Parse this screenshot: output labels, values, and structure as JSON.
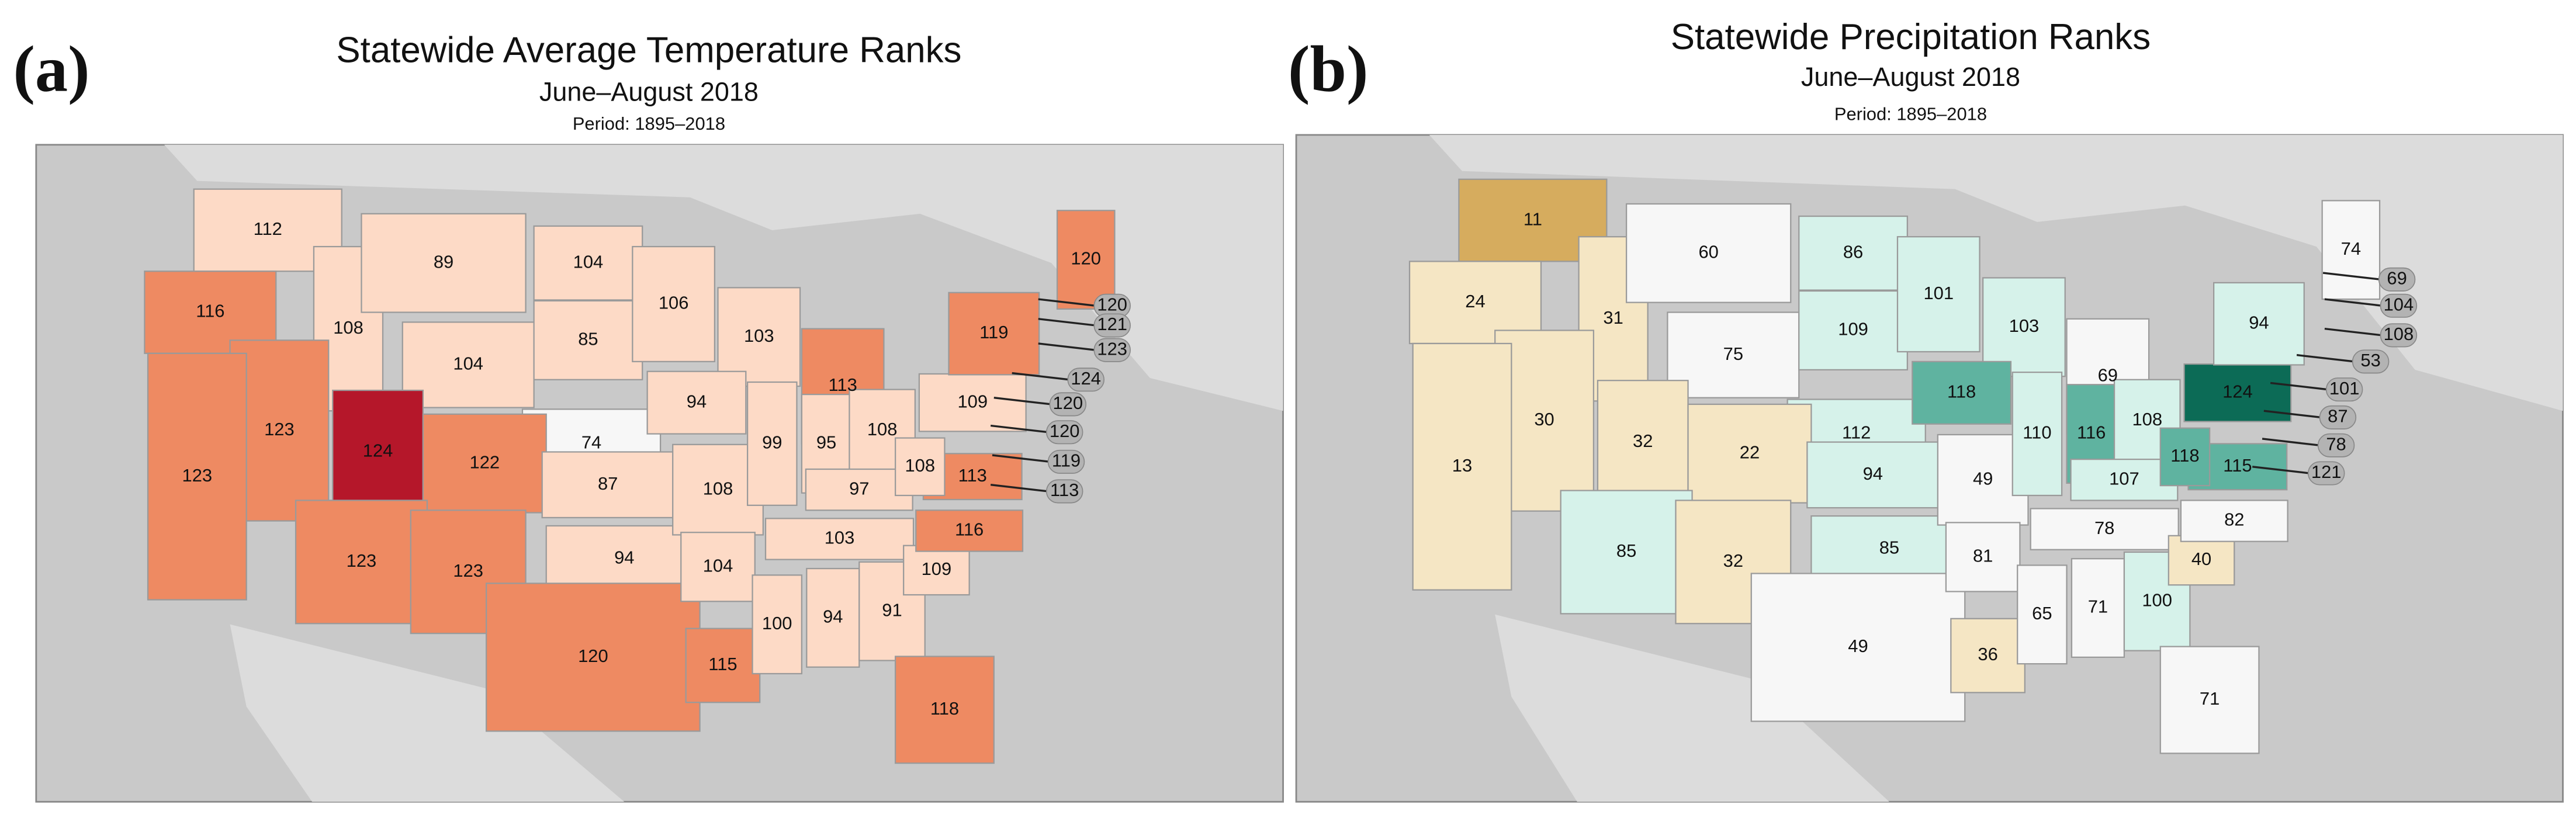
{
  "panels": [
    {
      "label": "(a)",
      "title": "Statewide Average Temperature Ranks",
      "subtitle": "June–August 2018",
      "period": "Period: 1895–2018",
      "ranks": [
        112,
        116,
        108,
        89,
        104,
        104,
        85,
        74,
        106,
        103,
        113,
        94,
        123,
        123,
        124,
        122,
        123,
        123,
        87,
        94,
        120,
        108,
        99,
        95,
        108,
        97,
        103,
        104,
        115,
        100,
        94,
        91,
        118,
        109,
        116,
        113,
        108,
        109,
        119,
        120
      ],
      "colors": [
        "#fddac6",
        "#ee8a62",
        "#fddac6",
        "#fddac6",
        "#fddac6",
        "#fddac6",
        "#fddac6",
        "#f7f7f7",
        "#fddac6",
        "#fddac6",
        "#ee8a62",
        "#fddac6",
        "#ee8a62",
        "#ee8a62",
        "#b5172a",
        "#ee8a62",
        "#ee8a62",
        "#ee8a62",
        "#fddac6",
        "#fddac6",
        "#ee8a62",
        "#fddac6",
        "#fddac6",
        "#fddac6",
        "#fddac6",
        "#fddac6",
        "#fddac6",
        "#fddac6",
        "#ee8a62",
        "#fddac6",
        "#fddac6",
        "#fddac6",
        "#ee8a62",
        "#fddac6",
        "#ee8a62",
        "#ee8a62",
        "#fddac6",
        "#fddac6",
        "#ee8a62",
        "#ee8a62"
      ],
      "callouts": [
        120,
        121,
        123,
        124,
        120,
        120,
        119,
        113
      ]
    },
    {
      "label": "(b)",
      "title": "Statewide Precipitation Ranks",
      "subtitle": "June–August 2018",
      "period": "Period: 1895–2018",
      "ranks": [
        11,
        24,
        31,
        60,
        75,
        86,
        109,
        112,
        101,
        103,
        69,
        118,
        30,
        13,
        32,
        22,
        85,
        32,
        94,
        85,
        49,
        49,
        110,
        116,
        108,
        107,
        78,
        81,
        36,
        65,
        71,
        100,
        71,
        40,
        82,
        115,
        118,
        124,
        94,
        74
      ],
      "colors": [
        "#d6ac5e",
        "#f5e6c4",
        "#f5e6c4",
        "#f7f7f7",
        "#f7f7f7",
        "#d6f2ea",
        "#d6f2ea",
        "#d6f2ea",
        "#d6f2ea",
        "#d6f2ea",
        "#f7f7f7",
        "#5fb3a0",
        "#f5e6c4",
        "#f5e6c4",
        "#f5e6c4",
        "#f5e6c4",
        "#d6f2ea",
        "#f5e6c4",
        "#d6f2ea",
        "#d6f2ea",
        "#f7f7f7",
        "#f7f7f7",
        "#d6f2ea",
        "#5fb3a0",
        "#d6f2ea",
        "#d6f2ea",
        "#f7f7f7",
        "#f7f7f7",
        "#f5e6c4",
        "#f7f7f7",
        "#f7f7f7",
        "#d6f2ea",
        "#f7f7f7",
        "#f5e6c4",
        "#f7f7f7",
        "#5fb3a0",
        "#5fb3a0",
        "#0c6b56",
        "#d6f2ea",
        "#f7f7f7"
      ],
      "callouts": [
        69,
        104,
        108,
        53,
        101,
        87,
        78,
        121
      ]
    }
  ]
}
